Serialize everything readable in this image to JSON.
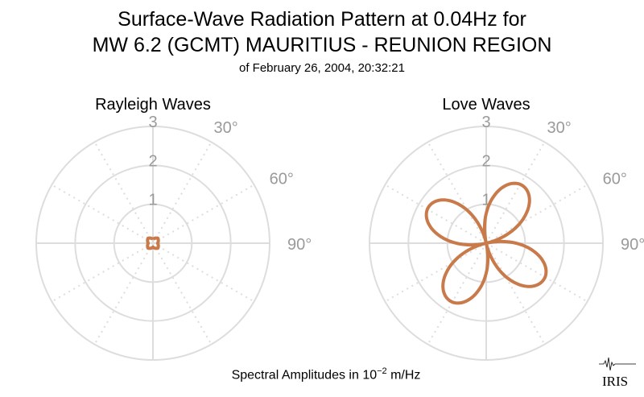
{
  "title": {
    "line1": "Surface-Wave Radiation Pattern at 0.04Hz for",
    "line2": "MW 6.2 (GCMT) MAURITIUS - REUNION REGION",
    "line3": "of February 26, 2004, 20:32:21"
  },
  "footer": {
    "prefix": "Spectral Amplitudes in 10",
    "exponent": "−2",
    "unit": " m/Hz"
  },
  "logo": {
    "text": "IRIS"
  },
  "colors": {
    "curve": "#c87a4a",
    "grid": "#dddddd",
    "axis": "#9a9a9a"
  },
  "chart_data": [
    {
      "type": "polar-line",
      "title": "Rayleigh Waves",
      "radial_ticks": [
        "1",
        "2",
        "3"
      ],
      "radial_range": [
        0,
        3
      ],
      "angle_ticks": [
        "30°",
        "60°",
        "90°"
      ],
      "angle_zero": "top",
      "direction": "clockwise",
      "grid": true,
      "series": [
        {
          "pattern": "four-lobe",
          "r_deg": [
            [
              0,
              0.1
            ],
            [
              45,
              0.18
            ],
            [
              90,
              0.12
            ],
            [
              135,
              0.18
            ],
            [
              180,
              0.1
            ],
            [
              225,
              0.18
            ],
            [
              270,
              0.12
            ],
            [
              315,
              0.18
            ]
          ]
        }
      ]
    },
    {
      "type": "polar-line",
      "title": "Love Waves",
      "radial_ticks": [
        "1",
        "2",
        "3"
      ],
      "radial_range": [
        0,
        3
      ],
      "angle_ticks": [
        "30°",
        "60°",
        "90°"
      ],
      "angle_zero": "top",
      "direction": "clockwise",
      "grid": true,
      "series": [
        {
          "pattern": "four-lobe",
          "peak_amplitude": 1.75,
          "lobe_azimuths_deg": [
            32,
            137,
            212,
            317
          ]
        }
      ]
    }
  ]
}
